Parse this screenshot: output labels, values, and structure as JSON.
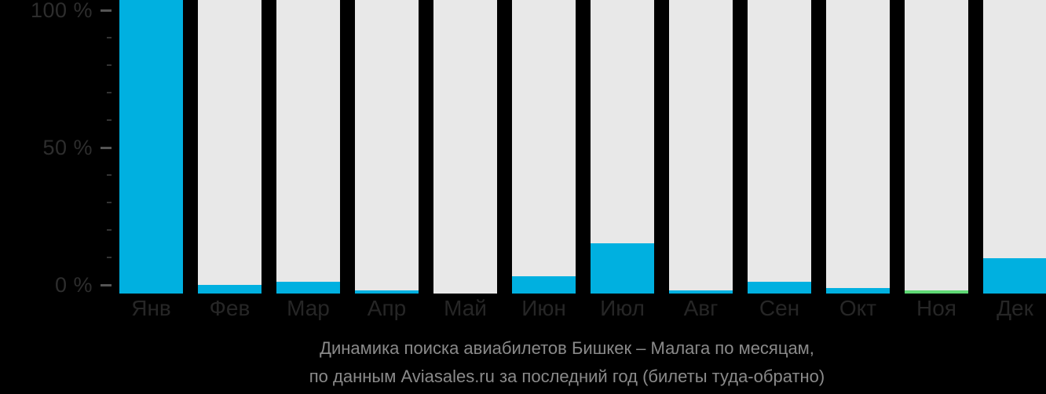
{
  "chart_data": {
    "type": "bar",
    "title": "Динамика поиска авиабилетов Бишкек – Малага по месяцам, по данным Aviasales.ru за последний год (билеты туда-обратно)",
    "categories": [
      "Янв",
      "Фев",
      "Мар",
      "Апр",
      "Май",
      "Июн",
      "Июл",
      "Авг",
      "Сен",
      "Окт",
      "Ноя",
      "Дек"
    ],
    "values": [
      100,
      3,
      4,
      1,
      0,
      6,
      17,
      1,
      4,
      2,
      1,
      12
    ],
    "value_unit": "%",
    "xlabel": "",
    "ylabel": "",
    "ylim": [
      0,
      100
    ],
    "y_major_ticks": [
      {
        "label": "100 %",
        "value": 100
      },
      {
        "label": "50 %",
        "value": 50
      },
      {
        "label": "0 %",
        "value": 0
      }
    ],
    "y_minor_tick_step": 10,
    "grid": "off",
    "legend": "none",
    "bar_track_full_height": true,
    "point_colors": [
      "#00b0e0",
      "#00b0e0",
      "#00b0e0",
      "#00b0e0",
      "#00b0e0",
      "#00b0e0",
      "#00b0e0",
      "#00b0e0",
      "#00b0e0",
      "#00b0e0",
      "#5fd874",
      "#00b0e0"
    ],
    "highlighted_bar": {
      "index": 10,
      "category": "Ноя",
      "color": "#5fd874"
    }
  },
  "caption": {
    "line1": "Динамика поиска авиабилетов Бишкек – Малага по месяцам,",
    "line2": "по данным Aviasales.ru за последний год (билеты туда-обратно)"
  },
  "colors": {
    "background": "#000000",
    "bar_track": "#e8e8e8",
    "bar_fill": "#00b0e0",
    "bar_fill_highlight": "#5fd874",
    "axis_label_text": "#2d2d2d",
    "major_tick": "#555555",
    "minor_tick": "#333333",
    "month_label_text": "#262626",
    "caption_text": "#8a8a8a"
  }
}
